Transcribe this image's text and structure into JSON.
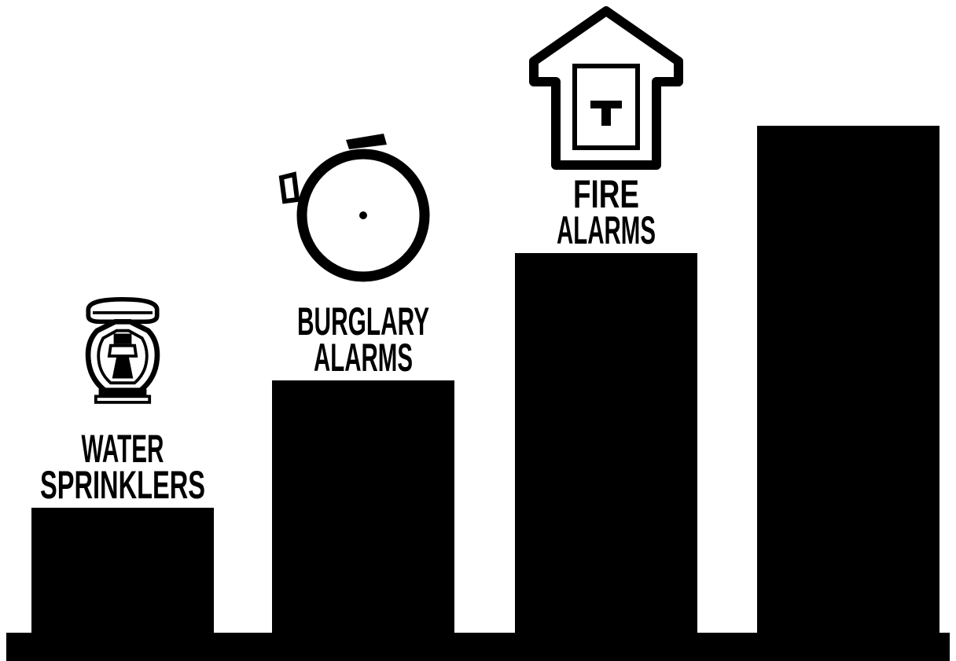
{
  "colors": {
    "ink": "#000000",
    "paper": "#ffffff"
  },
  "chart_data": {
    "type": "bar",
    "title": "",
    "xlabel": "",
    "ylabel": "",
    "categories": [
      "WATER SPRINKLERS",
      "BURGLARY ALARMS",
      "FIRE ALARMS",
      ""
    ],
    "label_lines": [
      [
        "WATER",
        "SPRINKLERS"
      ],
      [
        "BURGLARY",
        "ALARMS"
      ],
      [
        "FIRE",
        "ALARMS"
      ],
      []
    ],
    "icons": [
      "sprinkler-head-icon",
      "alarm-bell-icon",
      "fire-alarm-box-icon",
      ""
    ],
    "values": [
      1,
      2,
      3,
      4
    ],
    "ylim": [
      0,
      4
    ],
    "axis_ticks": false,
    "grid": false,
    "legend": "none"
  }
}
